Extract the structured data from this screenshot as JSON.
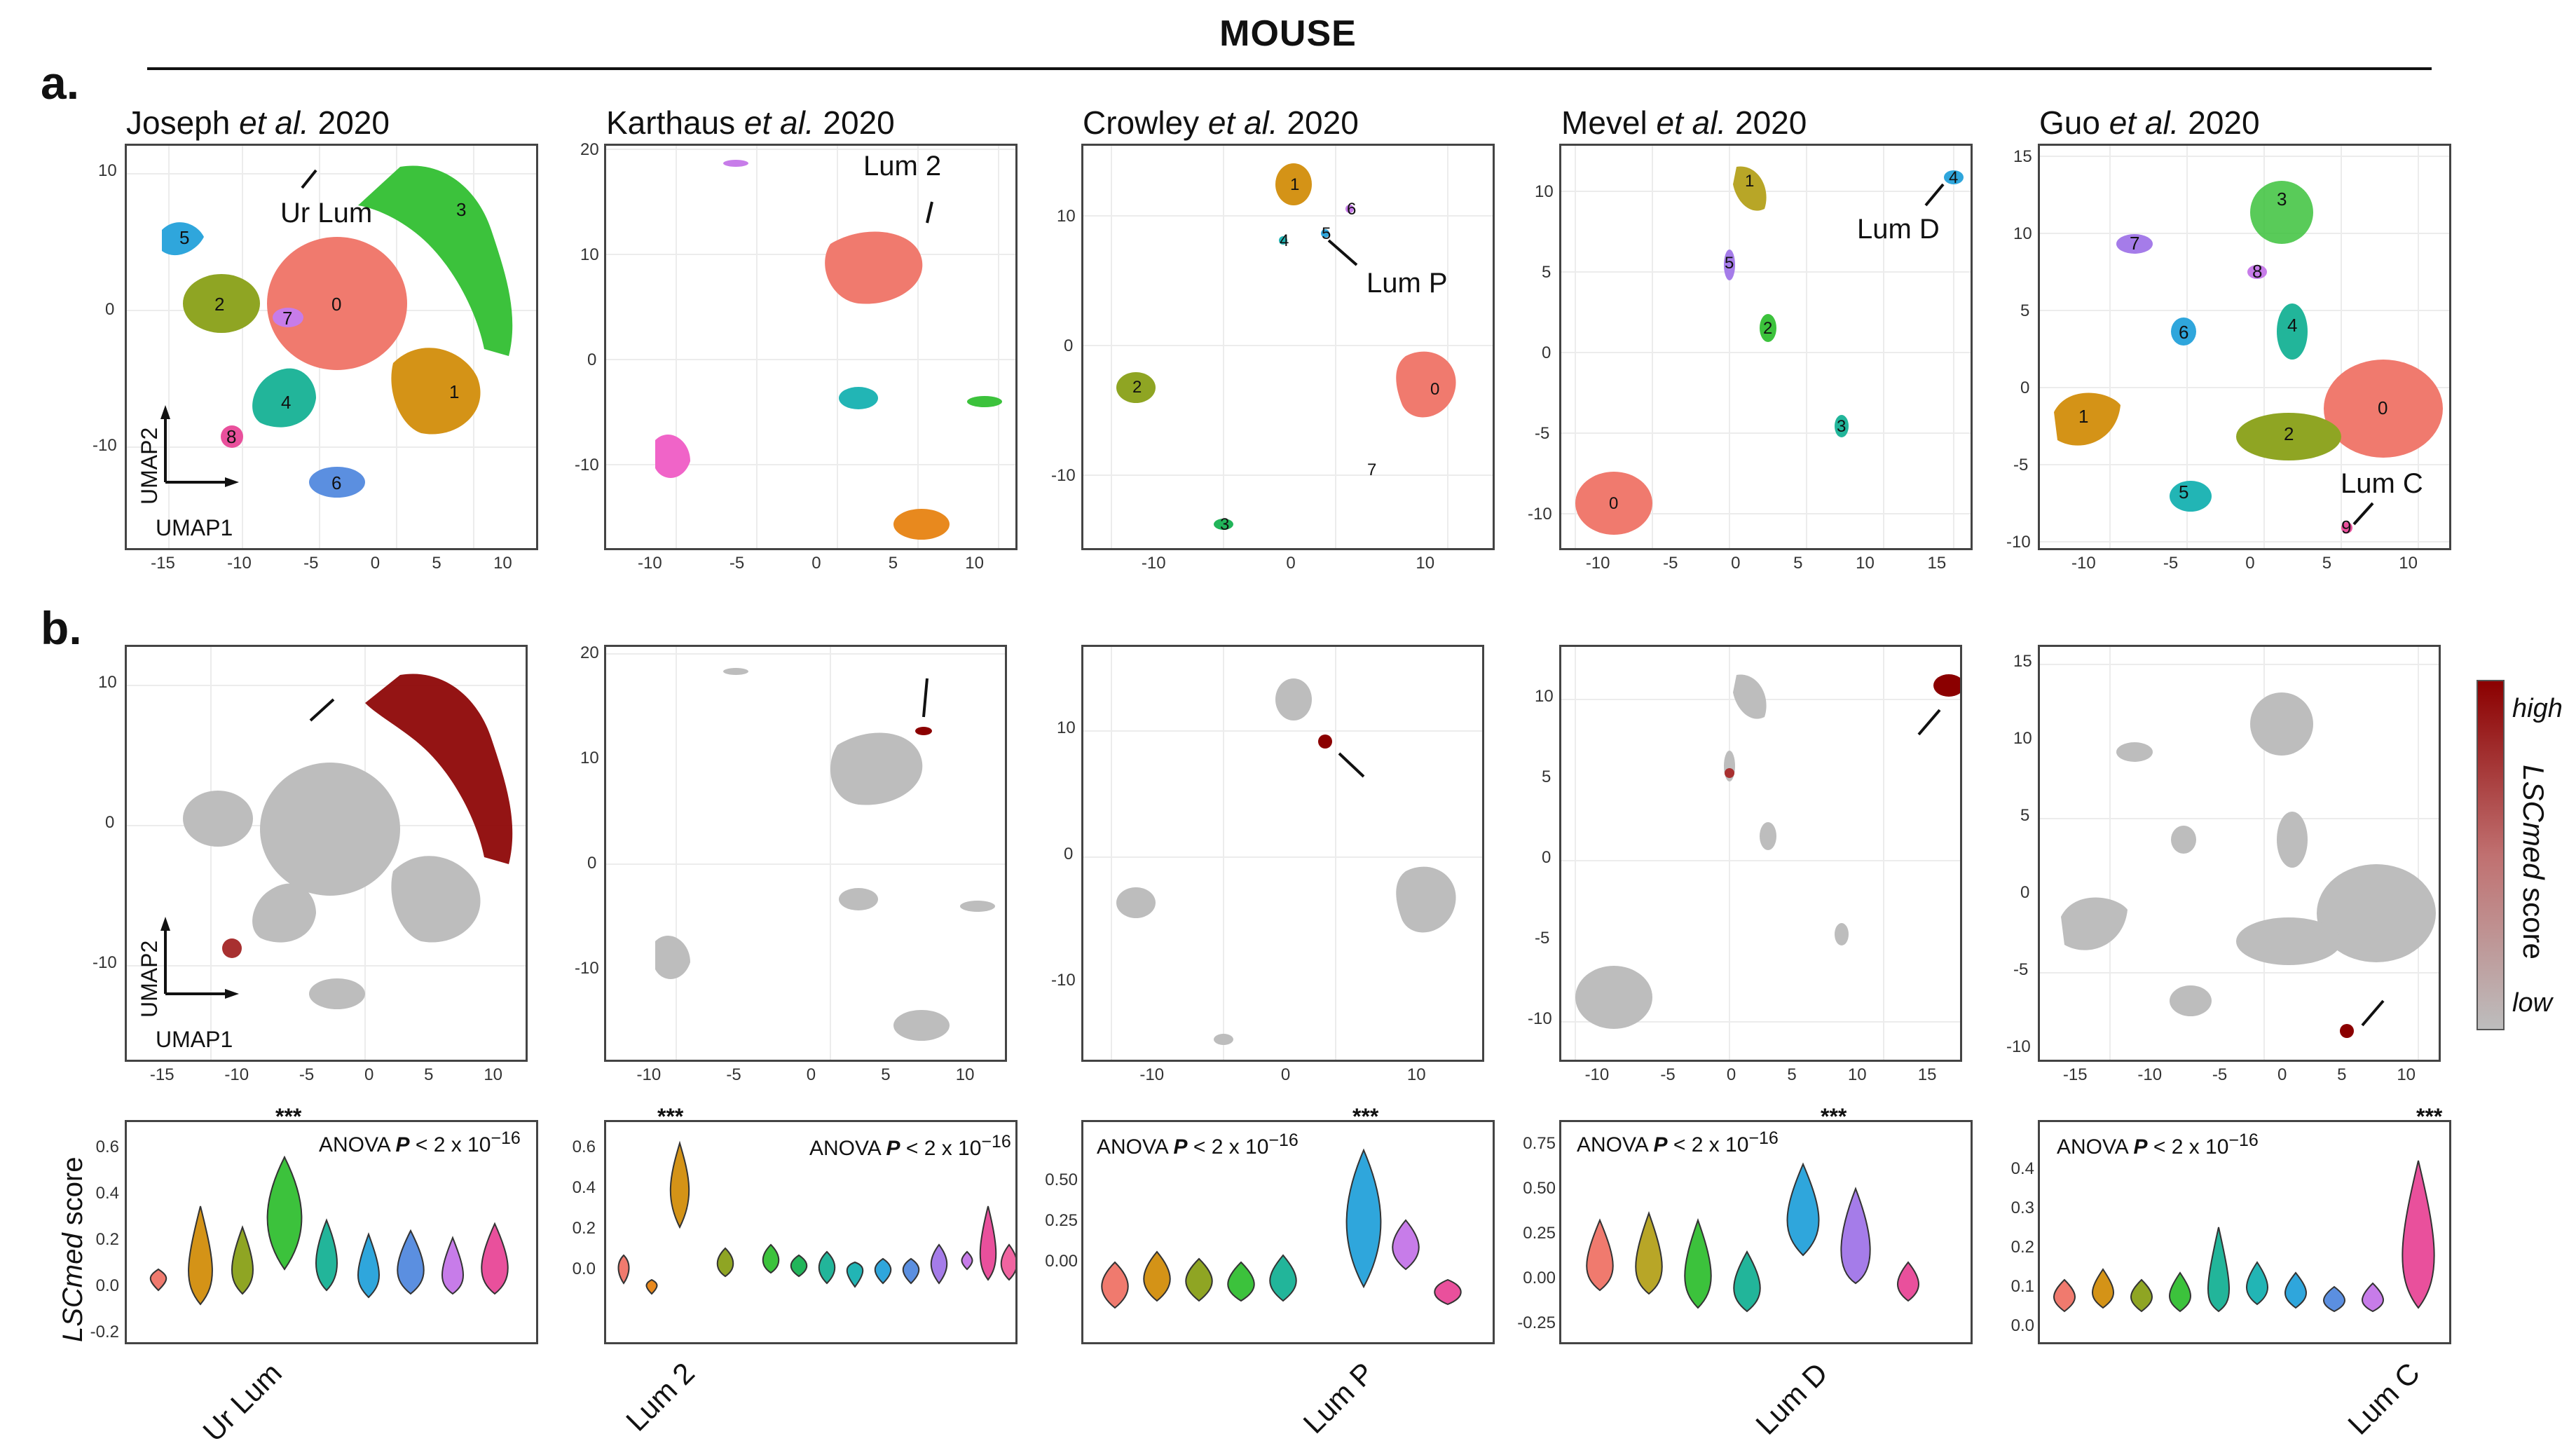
{
  "figure": {
    "title": "MOUSE",
    "panel_a_label": "a.",
    "panel_b_label": "b.",
    "umap_x_label": "UMAP1",
    "umap_y_label": "UMAP2",
    "legend": {
      "high": "high",
      "low": "low",
      "title_italic": "LSCmed",
      "title_rest": " score"
    },
    "violin_ylabel_italic": "LSCmed",
    "violin_ylabel_rest": " score",
    "stars": "***"
  },
  "studies": [
    {
      "author": "Joseph",
      "etal": " et al.",
      "year": " 2020",
      "callout": "Ur Lum",
      "violin_label": "Ur Lum",
      "anova": "ANOVA ",
      "anova_p": "P",
      "anova_rest": " < 2 x 10",
      "anova_exp": "−16",
      "x_ticks": [
        "-15",
        "-10",
        "-5",
        "0",
        "5",
        "10"
      ],
      "y_ticks": [
        "10",
        "0",
        "-10"
      ],
      "bx_ticks": [
        "-15",
        "-10",
        "-5",
        "0",
        "5",
        "10"
      ],
      "by_ticks": [
        "10",
        "0",
        "-10"
      ],
      "v_ticks": [
        "0.6",
        "0.4",
        "0.2",
        "0.0",
        "-0.2"
      ],
      "cluster_labels": [
        "0",
        "1",
        "2",
        "3",
        "4",
        "5",
        "6",
        "7",
        "8"
      ]
    },
    {
      "author": "Karthaus",
      "etal": " et al.",
      "year": " 2020",
      "callout": "Lum 2",
      "violin_label": "Lum 2",
      "anova": "ANOVA ",
      "anova_p": "P",
      "anova_rest": " < 2 x 10",
      "anova_exp": "−16",
      "x_ticks": [
        "-10",
        "-5",
        "0",
        "5",
        "10"
      ],
      "y_ticks": [
        "20",
        "10",
        "0",
        "-10"
      ],
      "bx_ticks": [
        "-10",
        "-5",
        "0",
        "5",
        "10"
      ],
      "by_ticks": [
        "20",
        "10",
        "0",
        "-10"
      ],
      "v_ticks": [
        "0.6",
        "0.4",
        "0.2",
        "0.0"
      ]
    },
    {
      "author": "Crowley",
      "etal": " et al.",
      "year": " 2020",
      "callout": "Lum P",
      "violin_label": "Lum P",
      "anova": "ANOVA ",
      "anova_p": "P",
      "anova_rest": " < 2 x 10",
      "anova_exp": "−16",
      "x_ticks": [
        "-10",
        "0",
        "10"
      ],
      "y_ticks": [
        "10",
        "0",
        "-10"
      ],
      "bx_ticks": [
        "-10",
        "0",
        "10"
      ],
      "by_ticks": [
        "10",
        "0",
        "-10"
      ],
      "v_ticks": [
        "0.50",
        "0.25",
        "0.00"
      ],
      "cluster_labels": [
        "0",
        "1",
        "2",
        "3",
        "4",
        "5",
        "6",
        "7"
      ]
    },
    {
      "author": "Mevel",
      "etal": " et al.",
      "year": " 2020",
      "callout": "Lum D",
      "violin_label": "Lum D",
      "anova": "ANOVA ",
      "anova_p": "P",
      "anova_rest": " < 2 x 10",
      "anova_exp": "−16",
      "x_ticks": [
        "-10",
        "-5",
        "0",
        "5",
        "10",
        "15"
      ],
      "y_ticks": [
        "10",
        "5",
        "0",
        "-5",
        "-10"
      ],
      "bx_ticks": [
        "-10",
        "-5",
        "0",
        "5",
        "10",
        "15"
      ],
      "by_ticks": [
        "10",
        "5",
        "0",
        "-5",
        "-10"
      ],
      "v_ticks": [
        "0.75",
        "0.50",
        "0.25",
        "0.00",
        "-0.25"
      ],
      "cluster_labels": [
        "0",
        "1",
        "2",
        "3",
        "4",
        "5"
      ]
    },
    {
      "author": "Guo",
      "etal": " et al.",
      "year": " 2020",
      "callout": "Lum C",
      "violin_label": "Lum C",
      "anova": "ANOVA ",
      "anova_p": "P",
      "anova_rest": " < 2 x 10",
      "anova_exp": "−16",
      "x_ticks": [
        "-10",
        "-5",
        "0",
        "5",
        "10"
      ],
      "y_ticks": [
        "15",
        "10",
        "5",
        "0",
        "-5",
        "-10"
      ],
      "bx_ticks": [
        "-15",
        "-10",
        "-5",
        "0",
        "5",
        "10"
      ],
      "by_ticks": [
        "15",
        "10",
        "5",
        "0",
        "-5",
        "-10"
      ],
      "v_ticks": [
        "0.4",
        "0.3",
        "0.2",
        "0.1",
        "0.0"
      ],
      "cluster_labels": [
        "0",
        "1",
        "2",
        "3",
        "4",
        "5",
        "6",
        "7",
        "8",
        "9"
      ]
    }
  ],
  "colors": {
    "highlight": "#8b0000",
    "gray_cells": "#bdbdbd"
  }
}
